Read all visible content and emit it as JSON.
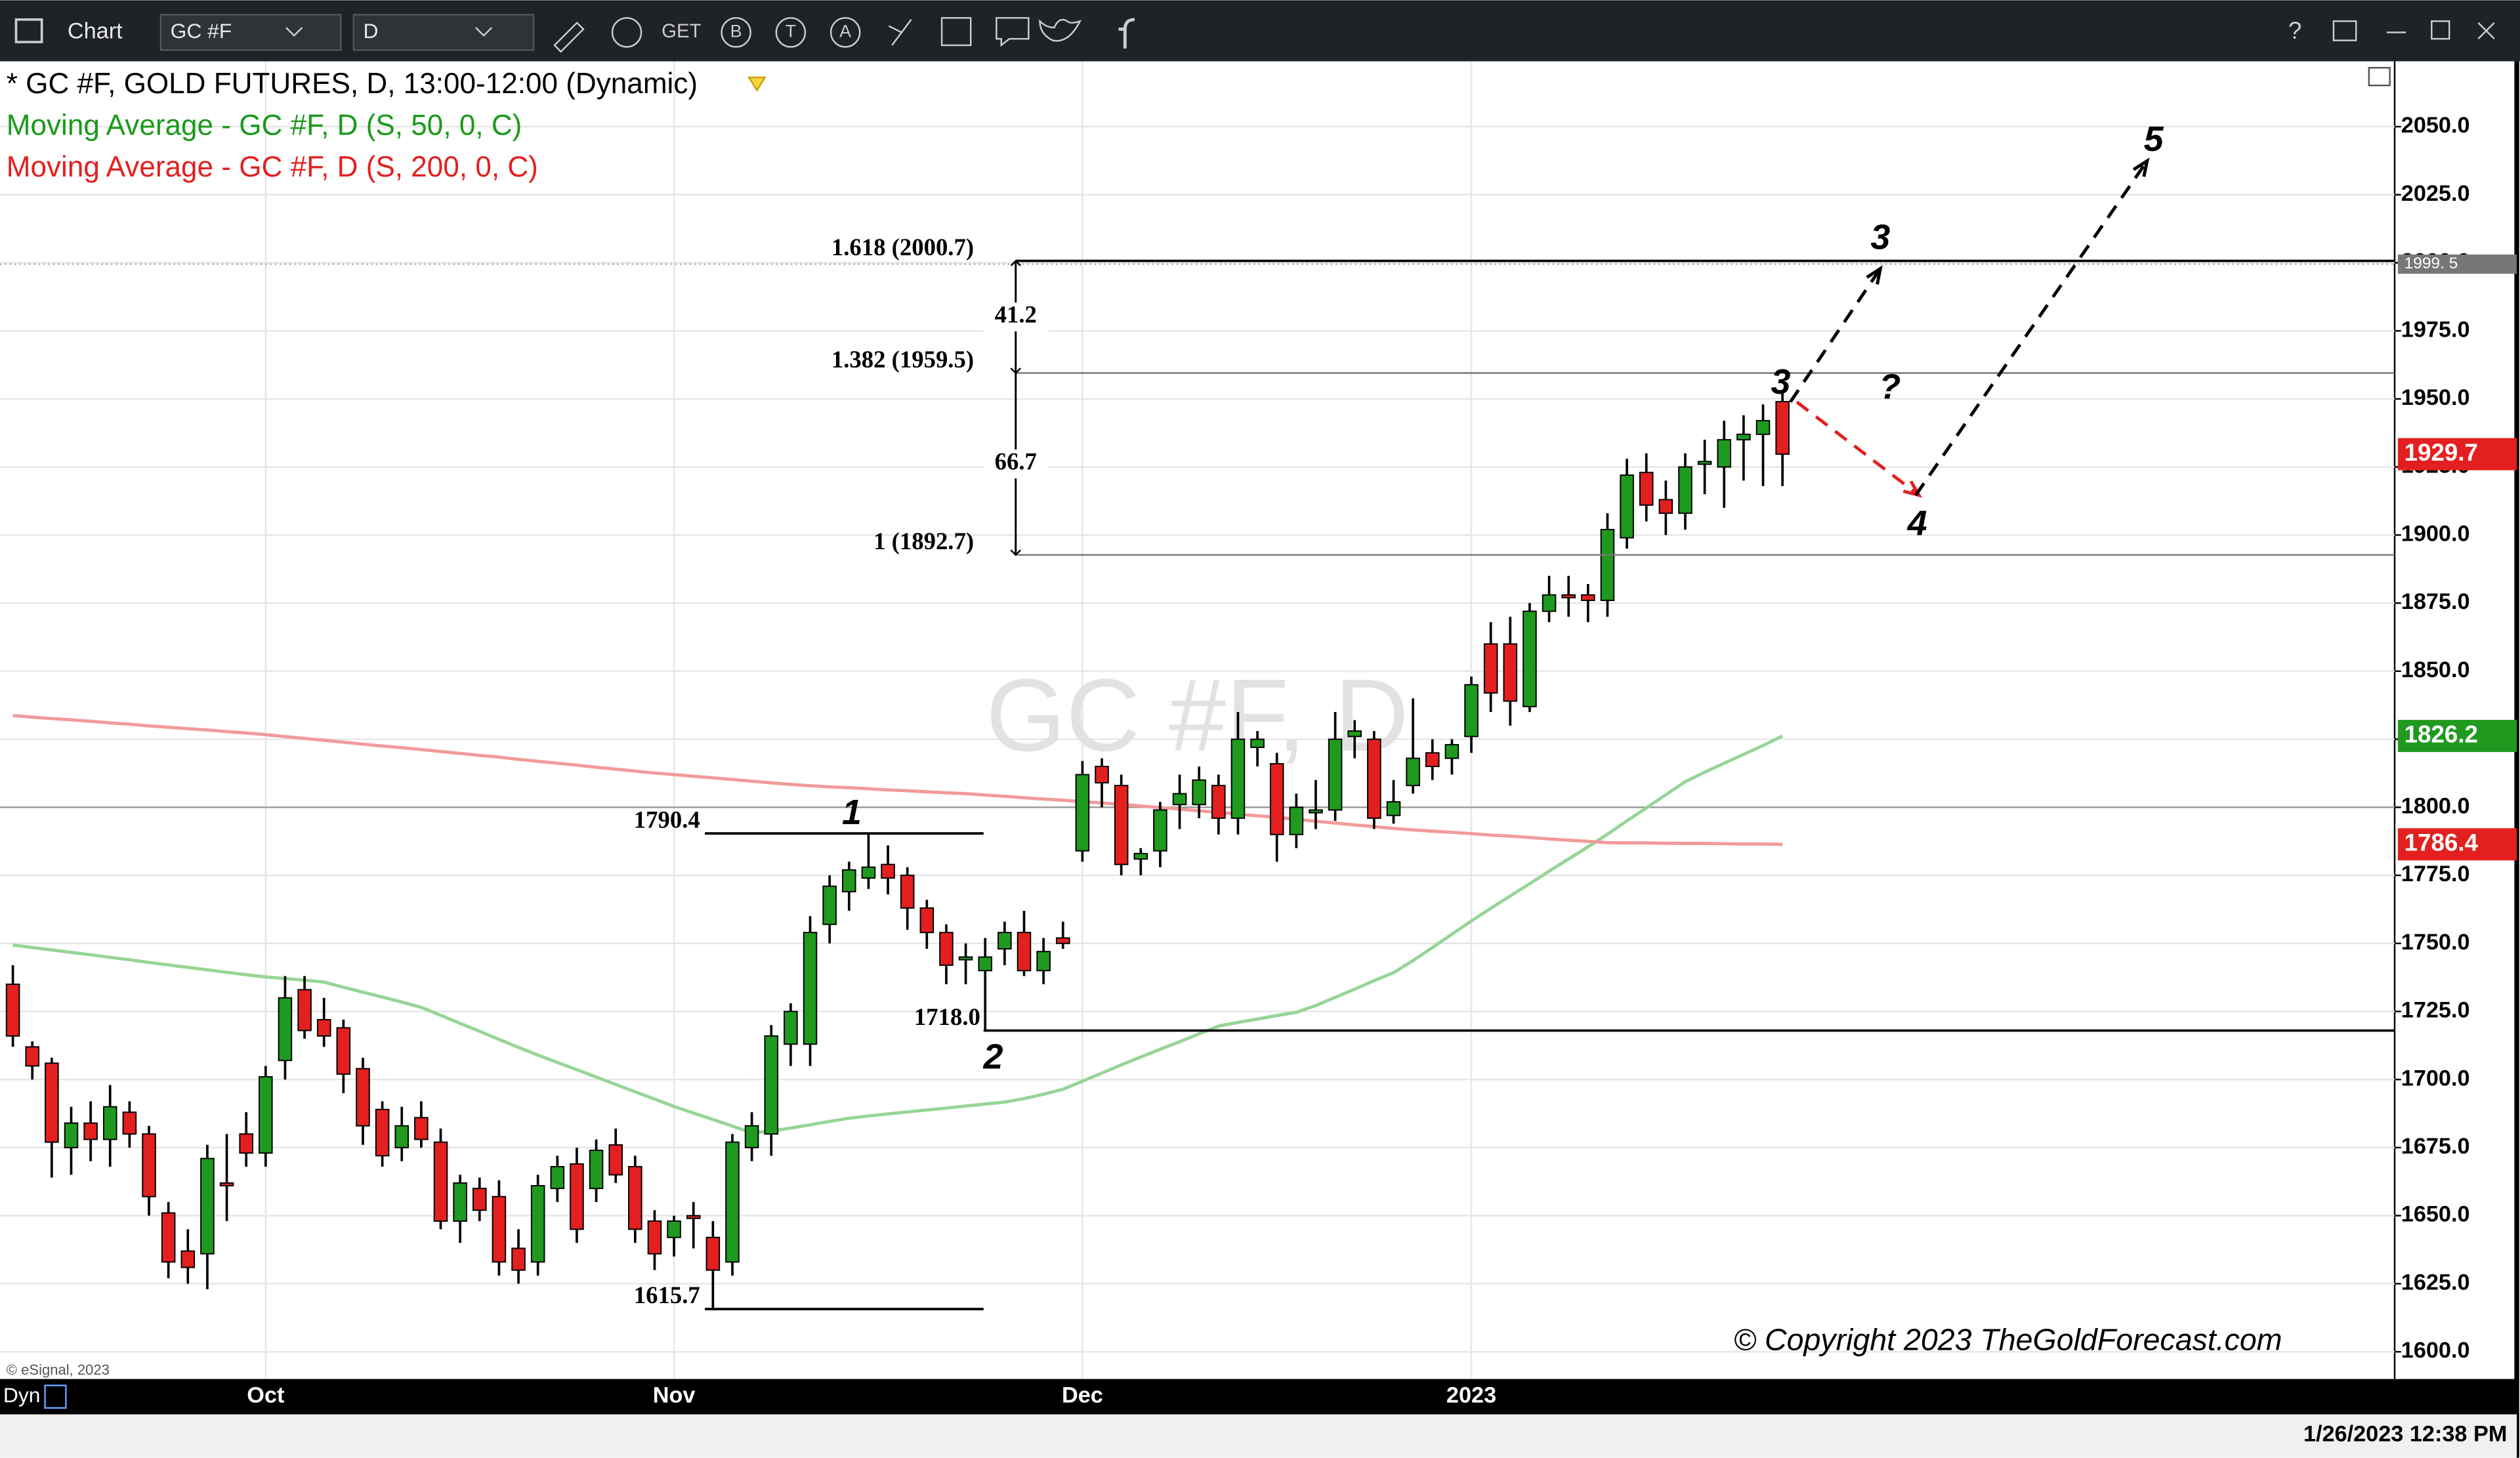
{
  "toolbar": {
    "app": "Chart",
    "symbol": "GC #F",
    "interval": "D",
    "buttons": [
      "GET",
      "B",
      "T",
      "A"
    ]
  },
  "footer": {
    "source": "© eSignal, 2023",
    "mode": "Dyn",
    "timestamp": "1/26/2023 12:38 PM"
  },
  "chart_data": {
    "type": "candlestick",
    "title": "* GC #F, GOLD FUTURES, D, 13:00-12:00 (Dynamic)",
    "watermark": "GC #F, D",
    "copyright": "© Copyright 2023 TheGoldForecast.com",
    "categories": [
      null,
      null,
      null,
      null,
      null,
      null,
      null,
      null,
      null,
      null,
      null,
      null,
      null,
      "Oct",
      null,
      null,
      null,
      null,
      null,
      null,
      null,
      null,
      null,
      null,
      null,
      null,
      null,
      null,
      null,
      null,
      null,
      null,
      null,
      null,
      "Nov",
      null,
      null,
      null,
      null,
      null,
      null,
      null,
      null,
      null,
      null,
      null,
      null,
      null,
      null,
      null,
      null,
      null,
      null,
      null,
      null,
      "Dec",
      null,
      null,
      null,
      null,
      null,
      null,
      null,
      null,
      null,
      null,
      null,
      null,
      null,
      null,
      null,
      null,
      null,
      null,
      null,
      "2023",
      null,
      null,
      null,
      null,
      null,
      null,
      null,
      null,
      null,
      null,
      null,
      null,
      null,
      null,
      null,
      null
    ],
    "open": [
      1735,
      1712,
      1706,
      1675,
      1684,
      1678,
      1688,
      1680,
      1651,
      1637,
      1636,
      1662,
      1680,
      1673,
      1707,
      1733,
      1722,
      1719,
      1704,
      1689,
      1675,
      1686,
      1677,
      1648,
      1660,
      1657,
      1638,
      1633,
      1660,
      1669,
      1660,
      1676,
      1668,
      1648,
      1642,
      1650,
      1642,
      1633,
      1675,
      1680,
      1713,
      1713,
      1757,
      1769,
      1774,
      1779,
      1775,
      1763,
      1754,
      1744,
      1740,
      1748,
      1754,
      1740,
      1752,
      1784,
      1815,
      1808,
      1781,
      1784,
      1801,
      1801,
      1808,
      1796,
      1822,
      1816,
      1790,
      1798,
      1799,
      1826,
      1825,
      1797,
      1808,
      1820,
      1818,
      1826,
      1860,
      1860,
      1837,
      1872,
      1878,
      1878,
      1876,
      1899,
      1923,
      1913,
      1908,
      1926,
      1925,
      1935,
      1937,
      1949
    ],
    "high": [
      1742,
      1714,
      1708,
      1690,
      1692,
      1698,
      1692,
      1683,
      1655,
      1645,
      1676,
      1680,
      1688,
      1705,
      1738,
      1738,
      1730,
      1722,
      1708,
      1692,
      1690,
      1692,
      1682,
      1665,
      1664,
      1663,
      1645,
      1665,
      1672,
      1675,
      1678,
      1682,
      1672,
      1652,
      1650,
      1655,
      1648,
      1680,
      1688,
      1720,
      1728,
      1760,
      1775,
      1780,
      1790.4,
      1786,
      1778,
      1766,
      1757,
      1750,
      1752,
      1758,
      1762,
      1752,
      1758,
      1817,
      1818,
      1812,
      1785,
      1802,
      1812,
      1815,
      1812,
      1835,
      1828,
      1820,
      1805,
      1810,
      1835,
      1832,
      1828,
      1810,
      1840,
      1825,
      1825,
      1848,
      1868,
      1870,
      1875,
      1885,
      1885,
      1882,
      1908,
      1928,
      1930,
      1920,
      1930,
      1935,
      1942,
      1944,
      1948,
      1952
    ],
    "low": [
      1712,
      1700,
      1664,
      1665,
      1670,
      1668,
      1675,
      1650,
      1627,
      1625,
      1623,
      1648,
      1668,
      1668,
      1700,
      1715,
      1712,
      1695,
      1676,
      1668,
      1670,
      1675,
      1645,
      1640,
      1648,
      1628,
      1625,
      1628,
      1655,
      1640,
      1655,
      1662,
      1640,
      1630,
      1635,
      1638,
      1615.7,
      1628,
      1670,
      1672,
      1705,
      1705,
      1750,
      1762,
      1770,
      1768,
      1755,
      1748,
      1735,
      1735,
      1718,
      1742,
      1738,
      1735,
      1748,
      1780,
      1800,
      1775,
      1775,
      1778,
      1792,
      1796,
      1790,
      1790,
      1815,
      1780,
      1785,
      1792,
      1795,
      1818,
      1792,
      1794,
      1805,
      1810,
      1812,
      1820,
      1835,
      1830,
      1835,
      1868,
      1870,
      1868,
      1870,
      1895,
      1905,
      1900,
      1902,
      1915,
      1910,
      1920,
      1918,
      1918
    ],
    "close": [
      1716,
      1705,
      1677,
      1684,
      1678,
      1690,
      1680,
      1657,
      1633,
      1631,
      1671,
      1661,
      1673,
      1701,
      1730,
      1718,
      1716,
      1702,
      1683,
      1672,
      1683,
      1678,
      1648,
      1662,
      1652,
      1633,
      1630,
      1661,
      1668,
      1645,
      1674,
      1665,
      1645,
      1636,
      1648,
      1649,
      1630,
      1677,
      1683,
      1716,
      1725,
      1754,
      1771,
      1777,
      1778,
      1774,
      1763,
      1754,
      1742,
      1745,
      1745,
      1754,
      1740,
      1747,
      1750,
      1812,
      1809,
      1779,
      1783,
      1799,
      1805,
      1810,
      1796,
      1825,
      1825,
      1790,
      1800,
      1799,
      1825,
      1828,
      1796,
      1802,
      1818,
      1815,
      1823,
      1845,
      1842,
      1839,
      1872,
      1878,
      1877,
      1876,
      1902,
      1922,
      1911,
      1908,
      1925,
      1927,
      1935,
      1937,
      1942,
      1929.7
    ],
    "up_color": "#1f9a1f",
    "down_color": "#e3201f",
    "series": [
      {
        "name": "Moving Average - GC #F, D (S, 50, 0, C)",
        "color": "#96d596",
        "text_color": "#1a9a1a",
        "values": [
          1749.4,
          1748.5,
          1747.6,
          1746.7,
          1745.8,
          1744.9,
          1744.0,
          1743.0,
          1742.1,
          1741.2,
          1740.3,
          1739.4,
          1738.5,
          1737.7,
          1737.1,
          1736.5,
          1735.8,
          1733.9,
          1732.1,
          1730.3,
          1728.5,
          1726.5,
          1723.6,
          1720.6,
          1717.7,
          1714.7,
          1711.8,
          1709.0,
          1706.3,
          1703.6,
          1700.9,
          1698.2,
          1695.5,
          1692.8,
          1690.1,
          1687.7,
          1685.3,
          1682.9,
          1680.4,
          1681.0,
          1682.2,
          1683.4,
          1684.6,
          1685.8,
          1686.6,
          1687.4,
          1688.1,
          1688.8,
          1689.5,
          1690.3,
          1691.0,
          1691.7,
          1693.0,
          1694.6,
          1696.4,
          1699.4,
          1702.4,
          1705.4,
          1708.3,
          1711.1,
          1713.9,
          1716.8,
          1719.6,
          1721.0,
          1722.2,
          1723.5,
          1724.7,
          1727.2,
          1730.2,
          1733.2,
          1736.3,
          1739.3,
          1743.7,
          1748.5,
          1753.4,
          1758.2,
          1762.9,
          1767.4,
          1771.9,
          1776.5,
          1781.0,
          1785.5,
          1790.1,
          1795.0,
          1799.8,
          1804.6,
          1809.4,
          1812.9,
          1816.2,
          1819.4,
          1822.7,
          1826.2
        ]
      },
      {
        "name": "Moving Average - GC #F, D (S, 200, 0, C)",
        "color": "#f29a9a",
        "text_color": "#e3201f",
        "values": [
          1833.7,
          1833.1,
          1832.6,
          1832.1,
          1831.6,
          1831.0,
          1830.5,
          1829.9,
          1829.4,
          1828.9,
          1828.4,
          1827.8,
          1827.3,
          1826.7,
          1826.0,
          1825.3,
          1824.6,
          1823.9,
          1823.2,
          1822.5,
          1821.9,
          1821.2,
          1820.5,
          1819.8,
          1819.1,
          1818.4,
          1817.6,
          1816.9,
          1816.2,
          1815.5,
          1814.7,
          1814.0,
          1813.3,
          1812.6,
          1812.0,
          1811.4,
          1810.8,
          1810.2,
          1809.6,
          1809.0,
          1808.4,
          1807.9,
          1807.5,
          1807.2,
          1806.8,
          1806.4,
          1806.1,
          1805.7,
          1805.3,
          1805.0,
          1804.5,
          1804.0,
          1803.5,
          1803.0,
          1802.6,
          1802.1,
          1801.6,
          1801.1,
          1800.5,
          1799.9,
          1799.3,
          1798.7,
          1798.1,
          1797.5,
          1796.9,
          1796.3,
          1795.6,
          1794.9,
          1794.2,
          1793.5,
          1792.9,
          1792.2,
          1791.7,
          1791.2,
          1790.8,
          1790.3,
          1789.8,
          1789.4,
          1788.9,
          1788.4,
          1787.9,
          1787.5,
          1787.0,
          1786.9,
          1786.9,
          1786.8,
          1786.7,
          1786.7,
          1786.6,
          1786.5,
          1786.5,
          1786.4
        ]
      }
    ],
    "ylim": [
      1590,
      2074
    ],
    "yticks": [
      {
        "value": 1600,
        "label": "1600.0"
      },
      {
        "value": 1625,
        "label": "1625.0"
      },
      {
        "value": 1650,
        "label": "1650.0"
      },
      {
        "value": 1675,
        "label": "1675.0"
      },
      {
        "value": 1700,
        "label": "1700.0"
      },
      {
        "value": 1725,
        "label": "1725.0"
      },
      {
        "value": 1750,
        "label": "1750.0"
      },
      {
        "value": 1775,
        "label": "1775.0"
      },
      {
        "value": 1800,
        "label": "1800.0"
      },
      {
        "value": 1825,
        "label": "1825.0"
      },
      {
        "value": 1850,
        "label": "1850.0"
      },
      {
        "value": 1875,
        "label": "1875.0"
      },
      {
        "value": 1900,
        "label": "1900.0"
      },
      {
        "value": 1925,
        "label": "1925.0"
      },
      {
        "value": 1950,
        "label": "1950.0"
      },
      {
        "value": 1975,
        "label": "1975.0"
      },
      {
        "value": 2000,
        "label": "2000.0"
      },
      {
        "value": 2025,
        "label": "2025.0"
      },
      {
        "value": 2050,
        "label": "2050.0"
      }
    ],
    "grid": true,
    "crosshair": {
      "value": 1999.5,
      "label": "1999. 5"
    },
    "reference_lines": [
      1800
    ],
    "levels": [
      {
        "value": 2000.7,
        "label": "1.618 (2000.7)"
      },
      {
        "value": 1959.5,
        "label": "1.382 (1959.5)"
      },
      {
        "value": 1892.7,
        "label": "1 (1892.7)"
      }
    ],
    "measures": [
      41.2,
      66.7
    ],
    "swing_levels": [
      {
        "value": 1790.4,
        "label": "1790.4"
      },
      {
        "value": 1718,
        "label": "1718.0"
      },
      {
        "value": 1615.7,
        "label": "1615.7"
      }
    ],
    "waves": [
      "1",
      "2",
      "3",
      "3",
      "4",
      "5",
      "?"
    ]
  }
}
